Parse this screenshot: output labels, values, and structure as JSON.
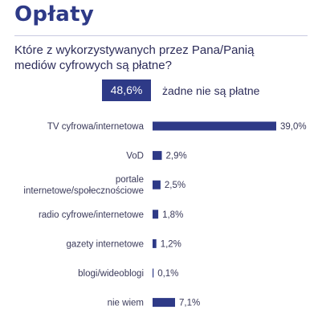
{
  "title": "Opłaty",
  "question": "Które z wykorzystywanych przez Pana/Panią mediów cyfrowych są płatne?",
  "highlight": {
    "value": "48,6%",
    "label": "żadne nie są płatne"
  },
  "colors": {
    "bar": "#2e3a87",
    "title": "#2e3a87"
  },
  "chart_data": {
    "type": "bar",
    "orientation": "horizontal",
    "categories": [
      [
        "TV cyfrowa/internetowa"
      ],
      [
        "VoD"
      ],
      [
        "portale",
        "internetowe/społecznościowe"
      ],
      [
        "radio cyfrowe/internetowe"
      ],
      [
        "gazety internetowe"
      ],
      [
        "blogi/wideoblogi"
      ],
      [
        "nie wiem"
      ]
    ],
    "values": [
      39.0,
      2.9,
      2.5,
      1.8,
      1.2,
      0.1,
      7.1
    ],
    "value_labels": [
      "39,0%",
      "2,9%",
      "2,5%",
      "1,8%",
      "1,2%",
      "0,1%",
      "7,1%"
    ],
    "xlim": [
      0,
      39.0
    ],
    "grid": false,
    "legend": "none"
  }
}
